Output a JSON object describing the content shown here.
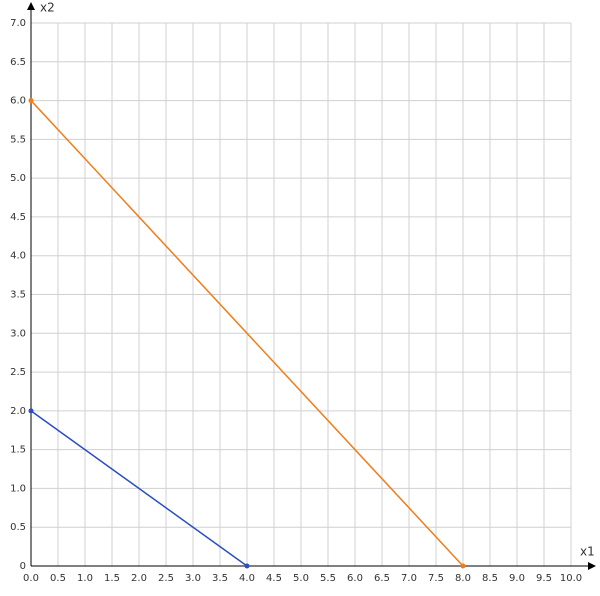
{
  "chart_data": {
    "type": "line",
    "x_label": "x1",
    "y_label": "x2",
    "series": [
      {
        "color": "#2a4fc0",
        "x": [
          0,
          4
        ],
        "values": [
          2,
          0
        ]
      },
      {
        "color": "#f07d1a",
        "x": [
          0,
          8
        ],
        "values": [
          6,
          0
        ]
      }
    ],
    "xlim": [
      0,
      10
    ],
    "ylim": [
      0,
      7
    ],
    "xticks": [
      {
        "value": 0,
        "label": "0.0"
      },
      0.5,
      {
        "value": 1,
        "label": "1.0"
      },
      1.5,
      {
        "value": 2,
        "label": "2.0"
      },
      2.5,
      {
        "value": 3,
        "label": "3.0"
      },
      3.5,
      {
        "value": 4,
        "label": "4.0"
      },
      4.5,
      {
        "value": 5,
        "label": "5.0"
      },
      5.5,
      {
        "value": 6,
        "label": "6.0"
      },
      6.5,
      {
        "value": 7,
        "label": "7.0"
      },
      7.5,
      {
        "value": 8,
        "label": "8.0"
      },
      8.5,
      {
        "value": 9,
        "label": "9.0"
      },
      9.5,
      {
        "value": 10,
        "label": "10.0"
      }
    ],
    "yticks": [
      0,
      0.5,
      {
        "value": 1,
        "label": "1.0"
      },
      1.5,
      {
        "value": 2,
        "label": "2.0"
      },
      2.5,
      {
        "value": 3,
        "label": "3.0"
      },
      3.5,
      {
        "value": 4,
        "label": "4.0"
      },
      4.5,
      {
        "value": 5,
        "label": "5.0"
      },
      5.5,
      {
        "value": 6,
        "label": "6.0"
      },
      6.5,
      {
        "value": 7,
        "label": "7.0"
      }
    ],
    "grid": true
  }
}
